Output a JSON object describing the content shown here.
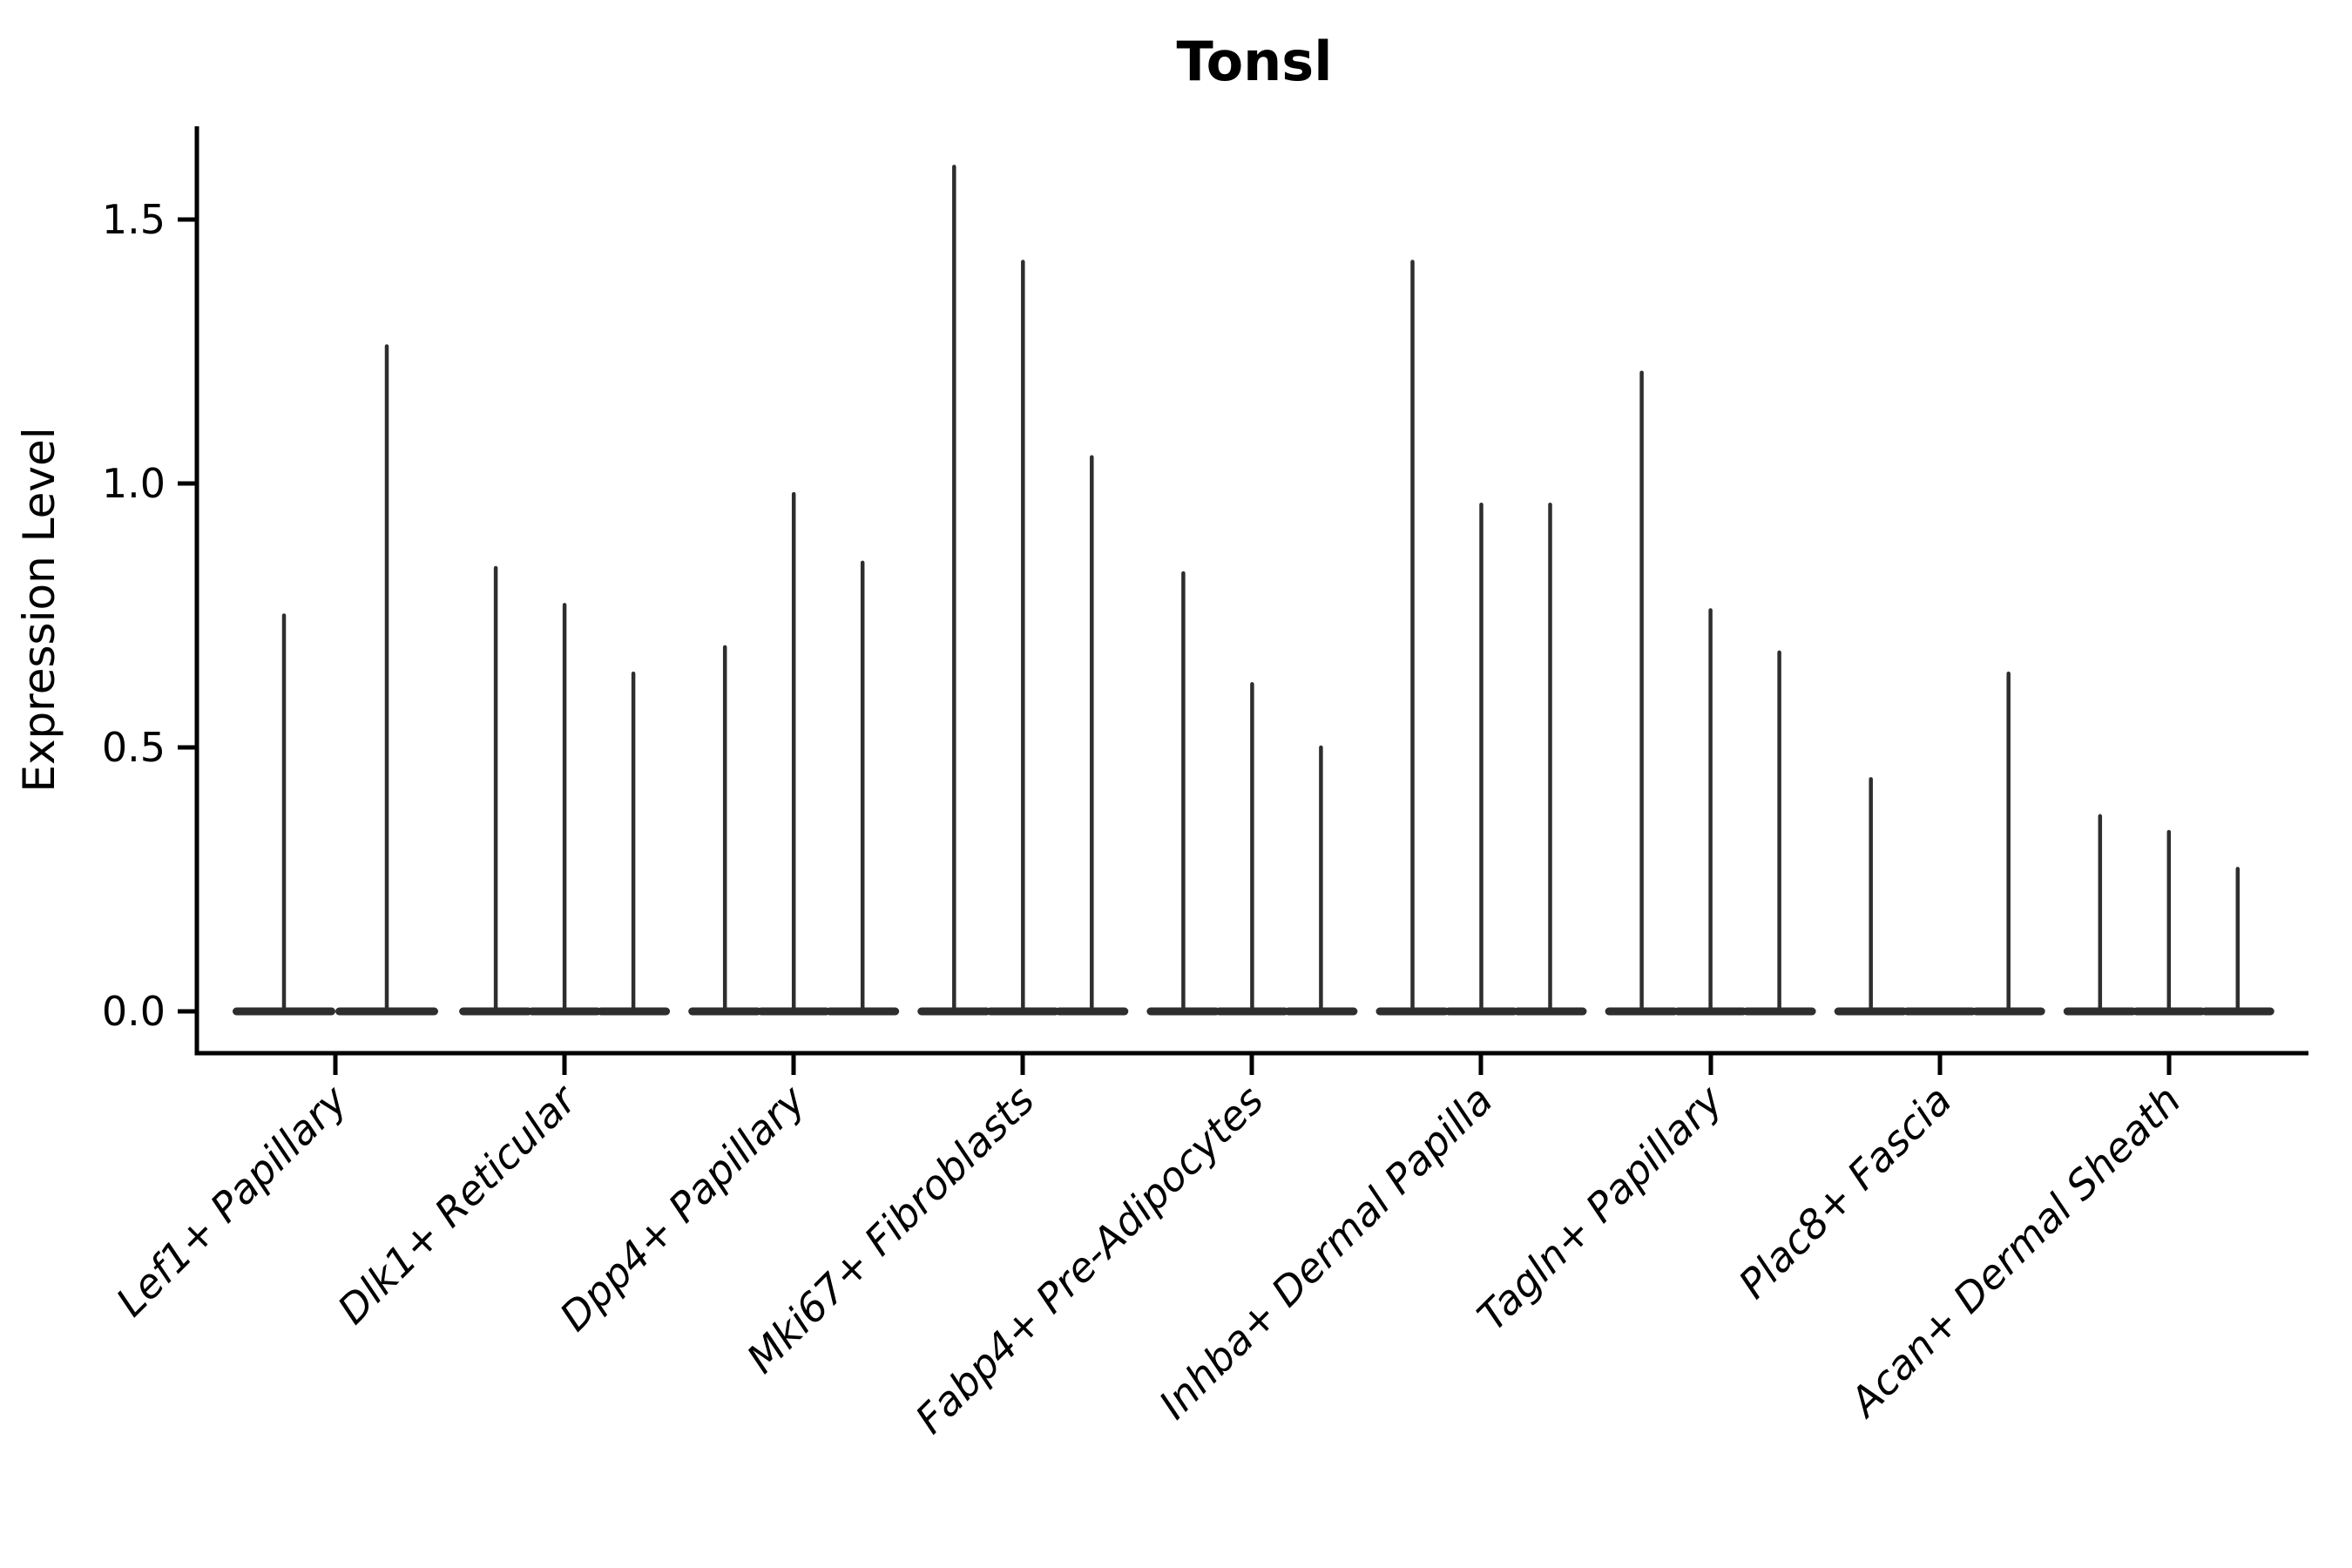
{
  "figure": {
    "background": "#ffffff"
  },
  "chart_data": {
    "type": "violin",
    "title": "Tonsl",
    "ylabel": "Expression Level",
    "xlabel": "",
    "ytick_labels": [
      "0.0",
      "0.5",
      "1.0",
      "1.5"
    ],
    "ytick_values": [
      0.0,
      0.5,
      1.0,
      1.5
    ],
    "ylim": [
      -0.08,
      1.68
    ],
    "grid": false,
    "legend": "none",
    "style": {
      "violin_color": "#2e2e2e",
      "axis_color": "#000000",
      "text_color": "#000000"
    },
    "categories": [
      "Lef1+ Papillary",
      "Dlk1+ Reticular",
      "Dpp4+ Papillary",
      "Mki67+ Fibroblasts",
      "Fabp4+ Pre-Adipocytes",
      "Inhba+ Dermal Papilla",
      "Tagln+ Papillary",
      "Plac8+ Fascia",
      "Acan+ Dermal Sheath"
    ],
    "violin_maxima_per_category": [
      [
        0.75,
        1.26
      ],
      [
        0.84,
        0.77,
        0.64
      ],
      [
        0.69,
        0.98,
        0.85
      ],
      [
        1.6,
        1.42,
        1.05
      ],
      [
        0.83,
        0.62,
        0.5
      ],
      [
        1.42,
        0.96,
        0.96
      ],
      [
        1.21,
        0.76,
        0.68
      ],
      [
        0.44,
        0.0,
        0.64
      ],
      [
        0.37,
        0.34,
        0.27
      ]
    ]
  }
}
